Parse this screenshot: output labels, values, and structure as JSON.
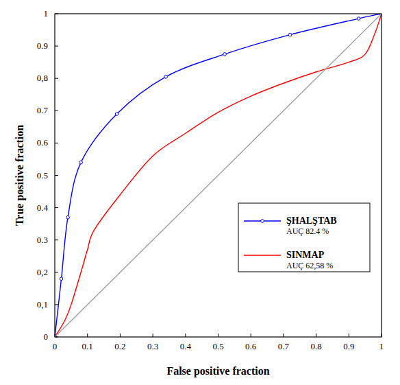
{
  "chart_data": {
    "type": "line",
    "x_label": "False positive fraction",
    "y_label": "True positive fraction",
    "xlim": [
      0,
      1
    ],
    "ylim": [
      0,
      1
    ],
    "xticks": [
      0,
      0.1,
      0.2,
      0.3,
      0.4,
      0.5,
      0.6,
      0.7,
      0.8,
      0.9,
      1
    ],
    "yticks": [
      0,
      {
        "value": 0.1,
        "label": "0,1"
      },
      {
        "value": 0.2,
        "label": "0,2"
      },
      0.3,
      0.4,
      0.5,
      0.6,
      0.7,
      {
        "value": 0.8,
        "label": "0,8"
      },
      0.9,
      1
    ],
    "grid": false,
    "legend": "lower-right",
    "series": [
      {
        "name": "ŞHALŞTAB",
        "legend_note": "AUÇ 82.4 %",
        "color": "#0000ff",
        "marker": "circle",
        "line_style": "solid",
        "x": [
          0,
          0.02,
          0.04,
          0.08,
          0.19,
          0.34,
          0.52,
          0.72,
          0.93,
          1
        ],
        "values": [
          0,
          0.18,
          0.37,
          0.54,
          0.69,
          0.805,
          0.875,
          0.935,
          0.985,
          1
        ]
      },
      {
        "name": "SINMAP",
        "legend_note": "AUÇ 62,58 %",
        "color": "#ff0000",
        "marker": "none",
        "line_style": "solid",
        "x": [
          0,
          0.03,
          0.05,
          0.08,
          0.1,
          0.12,
          0.2,
          0.3,
          0.4,
          0.5,
          0.6,
          0.7,
          0.8,
          0.9,
          0.95,
          0.98,
          1
        ],
        "values": [
          0,
          0.05,
          0.1,
          0.2,
          0.27,
          0.33,
          0.44,
          0.56,
          0.63,
          0.695,
          0.745,
          0.785,
          0.82,
          0.85,
          0.875,
          0.94,
          1
        ]
      },
      {
        "color": "#a0a0a0",
        "marker": "none",
        "line_style": "solid",
        "x": [
          0,
          1
        ],
        "values": [
          0,
          1
        ]
      }
    ]
  }
}
